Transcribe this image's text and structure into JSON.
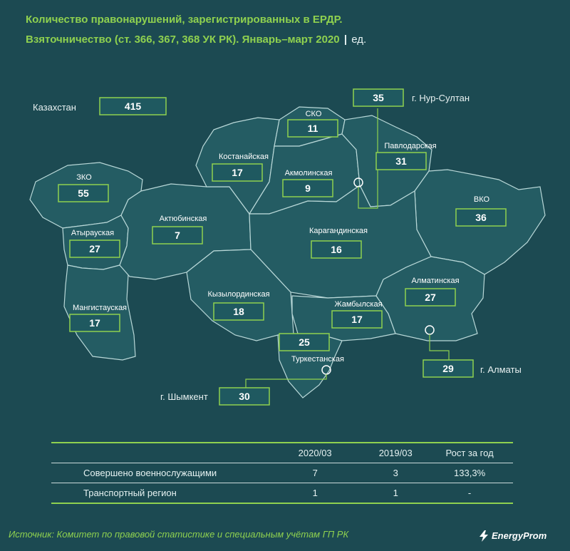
{
  "header": {
    "title_line1": "Количество правонарушений, зарегистрированных в ЕРДР.",
    "title_line2": "Взяточничество (ст. 366, 367,  368 УК РК). Январь–март 2020",
    "separator": "|",
    "unit": "ед."
  },
  "country": {
    "label": "Казахстан",
    "value": "415"
  },
  "regions": [
    {
      "id": "zko",
      "label": "ЗКО",
      "value": "55"
    },
    {
      "id": "atyrau",
      "label": "Атырауская",
      "value": "27"
    },
    {
      "id": "mangistau",
      "label": "Мангистауская",
      "value": "17"
    },
    {
      "id": "aktobe",
      "label": "Актюбинская",
      "value": "7"
    },
    {
      "id": "kostanay",
      "label": "Костанайская",
      "value": "17"
    },
    {
      "id": "sko",
      "label": "СКО",
      "value": "11"
    },
    {
      "id": "akmola",
      "label": "Акмолинская",
      "value": "9"
    },
    {
      "id": "pavlodar",
      "label": "Павлодарская",
      "value": "31"
    },
    {
      "id": "vko",
      "label": "ВКО",
      "value": "36"
    },
    {
      "id": "karaganda",
      "label": "Карагандинская",
      "value": "16"
    },
    {
      "id": "kyzylorda",
      "label": "Кызылординская",
      "value": "18"
    },
    {
      "id": "zhambyl",
      "label": "Жамбылская",
      "value": "17"
    },
    {
      "id": "almaty_obl",
      "label": "Алматинская",
      "value": "27"
    },
    {
      "id": "turkestan",
      "label": "Туркестанская",
      "value": "25"
    }
  ],
  "cities": [
    {
      "id": "nur_sultan",
      "label": "г. Нур-Султан",
      "value": "35"
    },
    {
      "id": "almaty",
      "label": "г. Алматы",
      "value": "29"
    },
    {
      "id": "shymkent",
      "label": "г. Шымкент",
      "value": "30"
    }
  ],
  "table": {
    "headers": [
      "",
      "2020/03",
      "2019/03",
      "Рост за год"
    ],
    "rows": [
      {
        "name": "Совершено военнослужащими",
        "v2020": "7",
        "v2019": "3",
        "growth": "133,3%"
      },
      {
        "name": "Транспортный регион",
        "v2020": "1",
        "v2019": "1",
        "growth": "-"
      }
    ]
  },
  "footer": {
    "source": "Источник: Комитет по правовой статистике и специальным учётам ГП РК",
    "brand": "EnergyProm"
  },
  "colors": {
    "background": "#1c4a52",
    "accent": "#8fd14f",
    "region_fill": "#245c63",
    "border": "#b9d8d8"
  }
}
